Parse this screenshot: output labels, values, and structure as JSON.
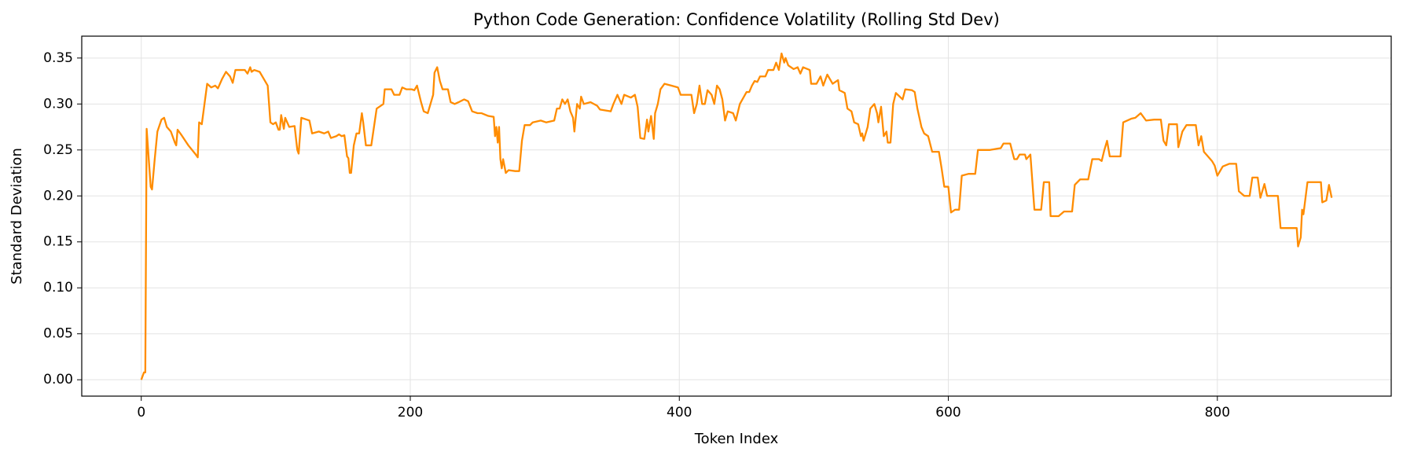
{
  "chart_data": {
    "type": "line",
    "title": "Python Code Generation: Confidence Volatility (Rolling Std Dev)",
    "x_label": "Token Index",
    "y_label": "Standard Deviation",
    "xlim": [
      -44.25,
      929.25
    ],
    "ylim": [
      -0.0178,
      0.3738
    ],
    "xticks": [
      0,
      200,
      400,
      600,
      800
    ],
    "yticks": [
      {
        "value": 0,
        "label": "0.00"
      },
      0.05,
      {
        "value": 0.1,
        "label": "0.10"
      },
      0.15,
      {
        "value": 0.2,
        "label": "0.20"
      },
      0.25,
      {
        "value": 0.3,
        "label": "0.30"
      },
      0.35
    ],
    "grid": true,
    "x": [
      0,
      2,
      3,
      4,
      7,
      8,
      10,
      12,
      15,
      17,
      19,
      22,
      25,
      26,
      27,
      30,
      35,
      40,
      42,
      43,
      45,
      47,
      49,
      52,
      55,
      57,
      60,
      63,
      66,
      68,
      70,
      74,
      77,
      79,
      81,
      82,
      84,
      88,
      90,
      92,
      94,
      95,
      96,
      98,
      100,
      102,
      103,
      104,
      106,
      107,
      110,
      114,
      116,
      117,
      119,
      123,
      125,
      127,
      132,
      136,
      139,
      141,
      145,
      147,
      149,
      151,
      153,
      154,
      155,
      156,
      158,
      160,
      162,
      164,
      165,
      167,
      171,
      173,
      175,
      180,
      181,
      186,
      188,
      192,
      194,
      197,
      201,
      203,
      205,
      208,
      210,
      213,
      215,
      217,
      218,
      220,
      222,
      224,
      228,
      230,
      233,
      236,
      240,
      243,
      246,
      250,
      253,
      258,
      262,
      263,
      264,
      265,
      266,
      267,
      268,
      269,
      271,
      273,
      278,
      281,
      283,
      285,
      289,
      291,
      297,
      301,
      307,
      309,
      311,
      313,
      315,
      317,
      319,
      321,
      322,
      324,
      326,
      327,
      329,
      334,
      339,
      341,
      349,
      351,
      354,
      357,
      359,
      364,
      367,
      369,
      371,
      374,
      376,
      377,
      379,
      381,
      382,
      384,
      386,
      389,
      394,
      399,
      401,
      409,
      411,
      413,
      415,
      417,
      419,
      421,
      424,
      426,
      428,
      430,
      432,
      434,
      436,
      440,
      442,
      445,
      450,
      452,
      454,
      456,
      458,
      460,
      464,
      466,
      470,
      472,
      474,
      476,
      478,
      479,
      481,
      485,
      488,
      490,
      492,
      497,
      498,
      502,
      505,
      507,
      510,
      514,
      518,
      519,
      523,
      525,
      528,
      530,
      533,
      535,
      536,
      537,
      540,
      542,
      545,
      547,
      548,
      550,
      552,
      554,
      555,
      557,
      559,
      561,
      566,
      568,
      573,
      575,
      577,
      580,
      582,
      585,
      588,
      593,
      595,
      597,
      600,
      602,
      605,
      608,
      610,
      615,
      620,
      622,
      631,
      639,
      641,
      646,
      649,
      651,
      653,
      657,
      658,
      661,
      664,
      669,
      671,
      675,
      676,
      682,
      686,
      692,
      694,
      698,
      704,
      707,
      712,
      714,
      716,
      718,
      720,
      728,
      730,
      736,
      739,
      743,
      747,
      753,
      758,
      760,
      762,
      764,
      770,
      771,
      774,
      777,
      784,
      786,
      788,
      790,
      796,
      798,
      800,
      804,
      809,
      814,
      816,
      820,
      824,
      826,
      830,
      832,
      835,
      837,
      845,
      847,
      855,
      859,
      860,
      862,
      863,
      864,
      867,
      872,
      877,
      878,
      881,
      883,
      885
    ],
    "series": [
      {
        "name": "Rolling Std Dev",
        "color": "#ff8c00",
        "values": [
          0.0,
          0.008,
          0.008,
          0.273,
          0.21,
          0.207,
          0.24,
          0.27,
          0.283,
          0.285,
          0.275,
          0.27,
          0.258,
          0.255,
          0.272,
          0.266,
          0.255,
          0.246,
          0.242,
          0.28,
          0.278,
          0.3,
          0.322,
          0.318,
          0.32,
          0.317,
          0.327,
          0.335,
          0.33,
          0.323,
          0.337,
          0.337,
          0.337,
          0.333,
          0.34,
          0.335,
          0.337,
          0.335,
          0.33,
          0.325,
          0.32,
          0.3,
          0.28,
          0.278,
          0.28,
          0.272,
          0.272,
          0.288,
          0.273,
          0.285,
          0.275,
          0.276,
          0.25,
          0.246,
          0.285,
          0.283,
          0.282,
          0.268,
          0.27,
          0.268,
          0.27,
          0.263,
          0.265,
          0.267,
          0.265,
          0.266,
          0.243,
          0.241,
          0.225,
          0.225,
          0.255,
          0.268,
          0.268,
          0.29,
          0.28,
          0.255,
          0.255,
          0.275,
          0.295,
          0.3,
          0.316,
          0.316,
          0.31,
          0.31,
          0.318,
          0.316,
          0.316,
          0.315,
          0.32,
          0.302,
          0.292,
          0.29,
          0.3,
          0.31,
          0.334,
          0.34,
          0.325,
          0.316,
          0.316,
          0.302,
          0.3,
          0.302,
          0.305,
          0.303,
          0.292,
          0.29,
          0.29,
          0.287,
          0.286,
          0.265,
          0.275,
          0.258,
          0.275,
          0.24,
          0.23,
          0.24,
          0.225,
          0.228,
          0.227,
          0.227,
          0.26,
          0.277,
          0.277,
          0.28,
          0.282,
          0.28,
          0.282,
          0.295,
          0.295,
          0.305,
          0.3,
          0.305,
          0.292,
          0.285,
          0.27,
          0.3,
          0.295,
          0.308,
          0.3,
          0.302,
          0.298,
          0.294,
          0.292,
          0.3,
          0.31,
          0.3,
          0.31,
          0.307,
          0.31,
          0.297,
          0.263,
          0.262,
          0.283,
          0.27,
          0.287,
          0.262,
          0.29,
          0.3,
          0.316,
          0.322,
          0.32,
          0.318,
          0.31,
          0.31,
          0.29,
          0.3,
          0.32,
          0.3,
          0.3,
          0.315,
          0.31,
          0.3,
          0.32,
          0.316,
          0.305,
          0.282,
          0.292,
          0.29,
          0.282,
          0.3,
          0.313,
          0.313,
          0.32,
          0.325,
          0.324,
          0.33,
          0.33,
          0.337,
          0.337,
          0.345,
          0.337,
          0.355,
          0.345,
          0.35,
          0.342,
          0.338,
          0.34,
          0.333,
          0.34,
          0.337,
          0.322,
          0.322,
          0.33,
          0.32,
          0.332,
          0.322,
          0.326,
          0.315,
          0.312,
          0.295,
          0.292,
          0.28,
          0.278,
          0.265,
          0.268,
          0.26,
          0.275,
          0.295,
          0.3,
          0.29,
          0.28,
          0.297,
          0.265,
          0.27,
          0.258,
          0.258,
          0.3,
          0.312,
          0.305,
          0.316,
          0.315,
          0.313,
          0.295,
          0.275,
          0.268,
          0.265,
          0.248,
          0.248,
          0.23,
          0.21,
          0.21,
          0.182,
          0.185,
          0.185,
          0.222,
          0.224,
          0.224,
          0.25,
          0.25,
          0.252,
          0.257,
          0.257,
          0.24,
          0.24,
          0.245,
          0.245,
          0.24,
          0.245,
          0.185,
          0.185,
          0.215,
          0.215,
          0.178,
          0.178,
          0.183,
          0.183,
          0.212,
          0.218,
          0.218,
          0.24,
          0.24,
          0.238,
          0.25,
          0.26,
          0.243,
          0.243,
          0.28,
          0.284,
          0.285,
          0.29,
          0.282,
          0.283,
          0.283,
          0.26,
          0.255,
          0.278,
          0.278,
          0.253,
          0.27,
          0.277,
          0.277,
          0.255,
          0.265,
          0.248,
          0.238,
          0.233,
          0.222,
          0.232,
          0.235,
          0.235,
          0.205,
          0.2,
          0.2,
          0.22,
          0.22,
          0.198,
          0.213,
          0.2,
          0.2,
          0.165,
          0.165,
          0.165,
          0.145,
          0.155,
          0.185,
          0.18,
          0.215,
          0.215,
          0.215,
          0.193,
          0.195,
          0.212,
          0.198
        ]
      }
    ]
  }
}
